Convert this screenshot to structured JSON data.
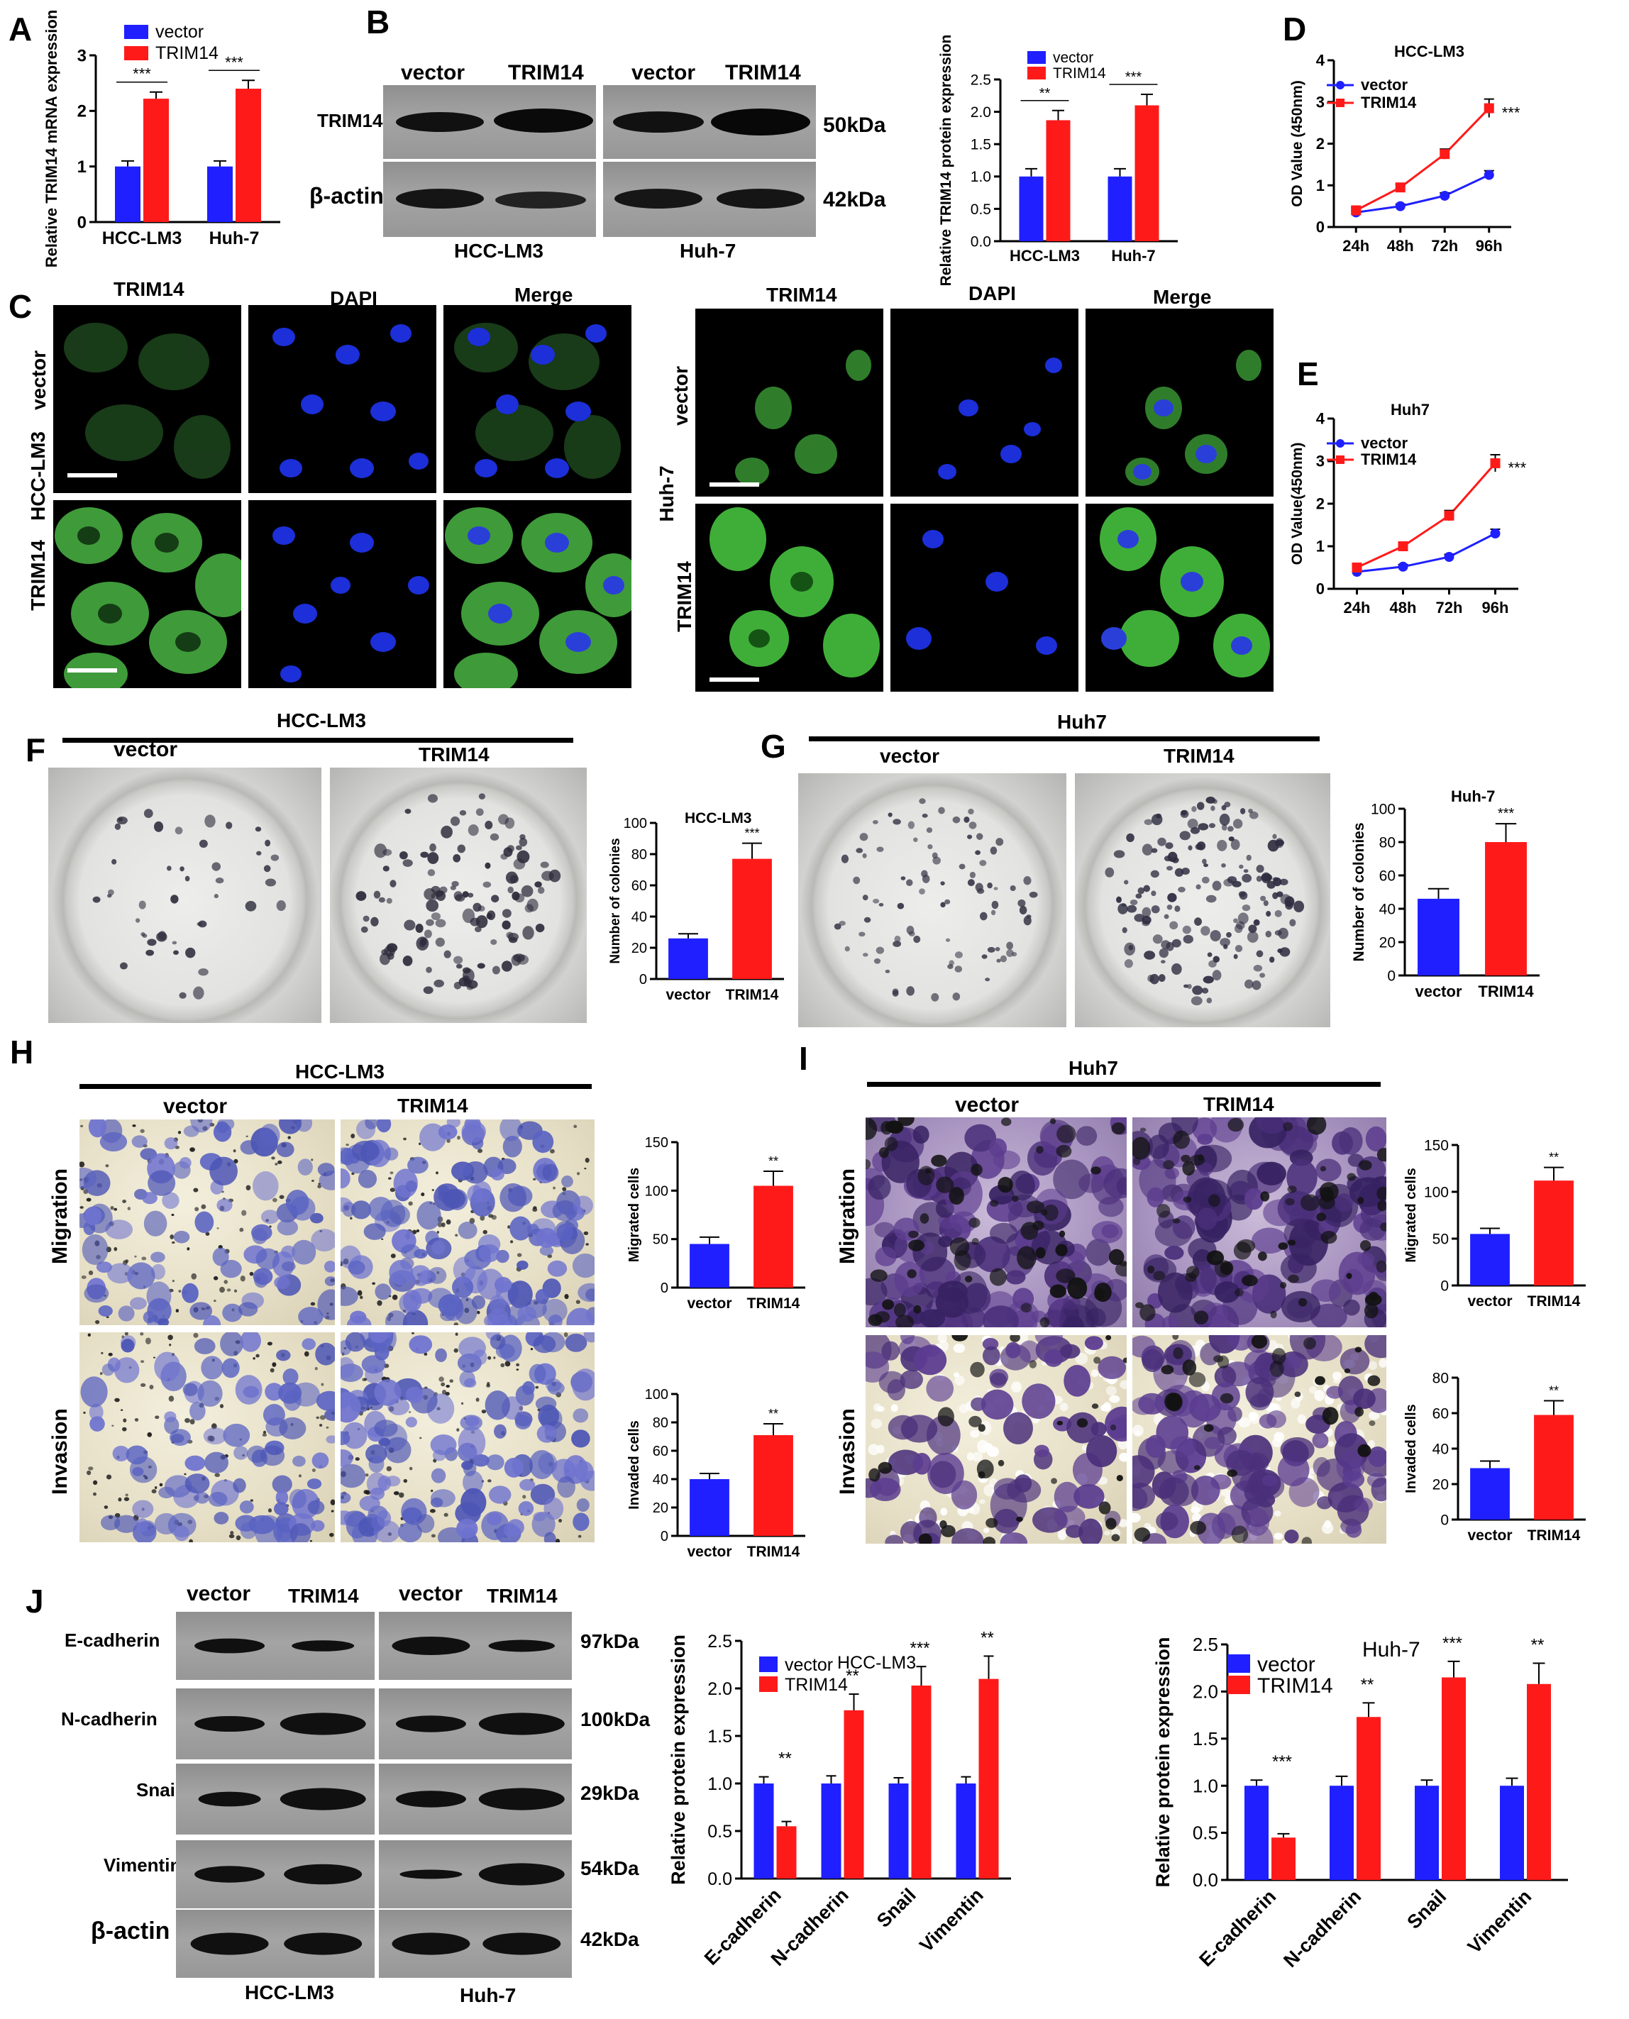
{
  "panel_labels": {
    "A": "A",
    "B": "B",
    "C": "C",
    "D": "D",
    "E": "E",
    "F": "F",
    "G": "G",
    "H": "H",
    "I": "I",
    "J": "J"
  },
  "colors": {
    "vector": "#1f1fff",
    "trim14": "#ff1a1a",
    "axis": "#000000"
  },
  "blotB": {
    "lanes": [
      "vector",
      "TRIM14",
      "vector",
      "TRIM14"
    ],
    "rows": [
      "TRIM14",
      "β-actin"
    ],
    "sizes": [
      "50kDa",
      "42kDa"
    ],
    "groups": [
      "HCC-LM3",
      "Huh-7"
    ]
  },
  "blotJ": {
    "lanes": [
      "vector",
      "TRIM14",
      "vector",
      "TRIM14"
    ],
    "rows": [
      "E-cadherin",
      "N-cadherin",
      "Snail",
      "Vimentin",
      "β-actin"
    ],
    "sizes": [
      "97kDa",
      "100kDa",
      "29kDa",
      "54kDa",
      "42kDa"
    ],
    "groups": [
      "HCC-LM3",
      "Huh-7"
    ]
  },
  "panelC": {
    "cols": [
      "TRIM14",
      "DAPI",
      "Merge"
    ],
    "rows": [
      "vector",
      "TRIM14"
    ],
    "left_cell": "HCC-LM3",
    "right_cell": "Huh-7"
  },
  "panelF": {
    "title": "HCC-LM3",
    "groups": [
      "vector",
      "TRIM14"
    ]
  },
  "panelG": {
    "title": "Huh7",
    "groups": [
      "vector",
      "TRIM14"
    ]
  },
  "panelH": {
    "title": "HCC-LM3",
    "groups": [
      "vector",
      "TRIM14"
    ],
    "rows": [
      "Migration",
      "Invasion"
    ]
  },
  "panelI": {
    "title": "Huh7",
    "groups": [
      "vector",
      "TRIM14"
    ],
    "rows": [
      "Migration",
      "Invasion"
    ]
  },
  "chart_data": [
    {
      "id": "A",
      "type": "bar",
      "categories": [
        "HCC-LM3",
        "Huh-7"
      ],
      "series": [
        {
          "name": "vector",
          "values": [
            1.0,
            1.0
          ],
          "errors": [
            0.1,
            0.1
          ]
        },
        {
          "name": "TRIM14",
          "values": [
            2.22,
            2.4
          ],
          "errors": [
            0.12,
            0.15
          ]
        }
      ],
      "ylabel": "Relative TRIM14 mRNA expression",
      "ylim": [
        0,
        3
      ],
      "yticks": [
        0,
        1,
        2,
        3
      ],
      "significance": [
        "***",
        "***"
      ],
      "legend": "top-left"
    },
    {
      "id": "B",
      "type": "bar",
      "categories": [
        "HCC-LM3",
        "Huh-7"
      ],
      "series": [
        {
          "name": "vector",
          "values": [
            1.0,
            1.0
          ],
          "errors": [
            0.12,
            0.12
          ]
        },
        {
          "name": "TRIM14",
          "values": [
            1.87,
            2.1
          ],
          "errors": [
            0.15,
            0.17
          ]
        }
      ],
      "ylabel": "Relative TRIM14 protein expression",
      "ylim": [
        0,
        2.5
      ],
      "yticks": [
        0.0,
        0.5,
        1.0,
        1.5,
        2.0,
        2.5
      ],
      "significance": [
        "**",
        "***"
      ],
      "legend": "top"
    },
    {
      "id": "D",
      "type": "line",
      "title": "HCC-LM3",
      "categories": [
        "24h",
        "48h",
        "72h",
        "96h"
      ],
      "series": [
        {
          "name": "vector",
          "values": [
            0.35,
            0.5,
            0.75,
            1.25
          ],
          "errors": [
            0.05,
            0.05,
            0.07,
            0.1
          ]
        },
        {
          "name": "TRIM14",
          "values": [
            0.4,
            0.95,
            1.75,
            2.85
          ],
          "errors": [
            0.06,
            0.08,
            0.12,
            0.22
          ]
        }
      ],
      "ylabel": "OD Value (450nm)",
      "ylim": [
        0,
        4
      ],
      "yticks": [
        0,
        1,
        2,
        3,
        4
      ],
      "significance": "***",
      "legend": "top-left"
    },
    {
      "id": "E",
      "type": "line",
      "title": "Huh7",
      "categories": [
        "24h",
        "48h",
        "72h",
        "96h"
      ],
      "series": [
        {
          "name": "vector",
          "values": [
            0.4,
            0.52,
            0.75,
            1.3
          ],
          "errors": [
            0.05,
            0.05,
            0.06,
            0.1
          ]
        },
        {
          "name": "TRIM14",
          "values": [
            0.5,
            1.0,
            1.72,
            2.95
          ],
          "errors": [
            0.06,
            0.07,
            0.12,
            0.2
          ]
        }
      ],
      "ylabel": "OD Value(450nm)",
      "ylim": [
        0,
        4
      ],
      "yticks": [
        0,
        1,
        2,
        3,
        4
      ],
      "significance": "***",
      "legend": "top-left"
    },
    {
      "id": "F",
      "type": "bar",
      "title": "HCC-LM3",
      "categories": [
        "vector",
        "TRIM14"
      ],
      "values": [
        26,
        77
      ],
      "errors": [
        3,
        10
      ],
      "ylabel": "Number of colonies",
      "ylim": [
        0,
        100
      ],
      "yticks": [
        0,
        20,
        40,
        60,
        80,
        100
      ],
      "significance": "***"
    },
    {
      "id": "G",
      "type": "bar",
      "title": "Huh-7",
      "categories": [
        "vector",
        "TRIM14"
      ],
      "values": [
        46,
        80
      ],
      "errors": [
        6,
        11
      ],
      "ylabel": "Number of colonies",
      "ylim": [
        0,
        100
      ],
      "yticks": [
        0,
        20,
        40,
        60,
        80,
        100
      ],
      "significance": "***"
    },
    {
      "id": "H1",
      "type": "bar",
      "categories": [
        "vector",
        "TRIM14"
      ],
      "values": [
        45,
        105
      ],
      "errors": [
        7,
        15
      ],
      "ylabel": "Migrated cells",
      "ylim": [
        0,
        150
      ],
      "yticks": [
        0,
        50,
        100,
        150
      ],
      "significance": "**"
    },
    {
      "id": "H2",
      "type": "bar",
      "categories": [
        "vector",
        "TRIM14"
      ],
      "values": [
        40,
        71
      ],
      "errors": [
        4,
        8
      ],
      "ylabel": "Invaded cells",
      "ylim": [
        0,
        100
      ],
      "yticks": [
        0,
        20,
        40,
        60,
        80,
        100
      ],
      "significance": "**"
    },
    {
      "id": "I1",
      "type": "bar",
      "categories": [
        "vector",
        "TRIM14"
      ],
      "values": [
        55,
        112
      ],
      "errors": [
        6,
        14
      ],
      "ylabel": "Migrated cells",
      "ylim": [
        0,
        150
      ],
      "yticks": [
        0,
        50,
        100,
        150
      ],
      "significance": "**"
    },
    {
      "id": "I2",
      "type": "bar",
      "categories": [
        "vector",
        "TRIM14"
      ],
      "values": [
        29,
        59
      ],
      "errors": [
        4,
        8
      ],
      "ylabel": "Invaded cells",
      "ylim": [
        0,
        80
      ],
      "yticks": [
        0,
        20,
        40,
        60,
        80
      ],
      "significance": "**"
    },
    {
      "id": "J1",
      "type": "bar",
      "title": "HCC-LM3",
      "categories": [
        "E-cadherin",
        "N-cadherin",
        "Snail",
        "Vimentin"
      ],
      "series": [
        {
          "name": "vector",
          "values": [
            1.0,
            1.0,
            1.0,
            1.0
          ],
          "errors": [
            0.07,
            0.08,
            0.06,
            0.07
          ]
        },
        {
          "name": "TRIM14",
          "values": [
            0.55,
            1.77,
            2.03,
            2.1
          ],
          "errors": [
            0.05,
            0.17,
            0.2,
            0.24
          ]
        }
      ],
      "ylabel": "Relative protein expression",
      "ylim": [
        0,
        2.5
      ],
      "yticks": [
        0.0,
        0.5,
        1.0,
        1.5,
        2.0,
        2.5
      ],
      "significance": [
        "**",
        "**",
        "***",
        "**"
      ],
      "legend": "top-left"
    },
    {
      "id": "J2",
      "type": "bar",
      "title": "Huh-7",
      "categories": [
        "E-cadherin",
        "N-cadherin",
        "Snail",
        "Vimentin"
      ],
      "series": [
        {
          "name": "vector",
          "values": [
            1.0,
            1.0,
            1.0,
            1.0
          ],
          "errors": [
            0.06,
            0.1,
            0.06,
            0.08
          ]
        },
        {
          "name": "TRIM14",
          "values": [
            0.45,
            1.73,
            2.15,
            2.08
          ],
          "errors": [
            0.04,
            0.15,
            0.17,
            0.22
          ]
        }
      ],
      "ylabel": "Relative protein expression",
      "ylim": [
        0,
        2.5
      ],
      "yticks": [
        0.0,
        0.5,
        1.0,
        1.5,
        2.0,
        2.5
      ],
      "significance": [
        "***",
        "**",
        "***",
        "**"
      ],
      "legend": "top-left"
    }
  ]
}
